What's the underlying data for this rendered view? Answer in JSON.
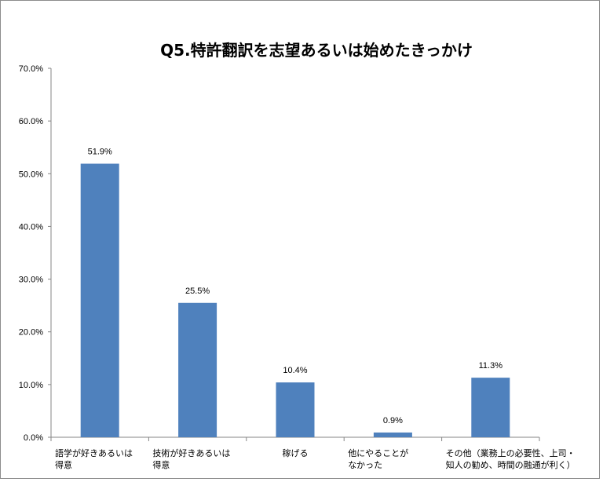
{
  "chart_data": {
    "type": "bar",
    "title": "Q5.特許翻訳を志望あるいは始めたきっかけ",
    "xlabel": "",
    "ylabel": "",
    "ylim": [
      0,
      70
    ],
    "yticks": [
      "0.0%",
      "10.0%",
      "20.0%",
      "30.0%",
      "40.0%",
      "50.0%",
      "60.0%",
      "70.0%"
    ],
    "ytick_values": [
      0,
      10,
      20,
      30,
      40,
      50,
      60,
      70
    ],
    "categories": [
      [
        "語学が好きあるいは",
        "得意"
      ],
      [
        "技術が好きあるいは",
        "得意"
      ],
      [
        "稼げる"
      ],
      [
        "他にやることが",
        "なかった"
      ],
      [
        "その他（業務上の必要性、上司・",
        "知人の勧め、時間の融通が利く）"
      ]
    ],
    "values": [
      51.9,
      25.5,
      10.4,
      0.9,
      11.3
    ],
    "value_labels": [
      "51.9%",
      "25.5%",
      "10.4%",
      "0.9%",
      "11.3%"
    ],
    "grid": false,
    "legend": "none",
    "colors": {
      "bar": "#4f81bd",
      "axis": "#868686"
    }
  }
}
